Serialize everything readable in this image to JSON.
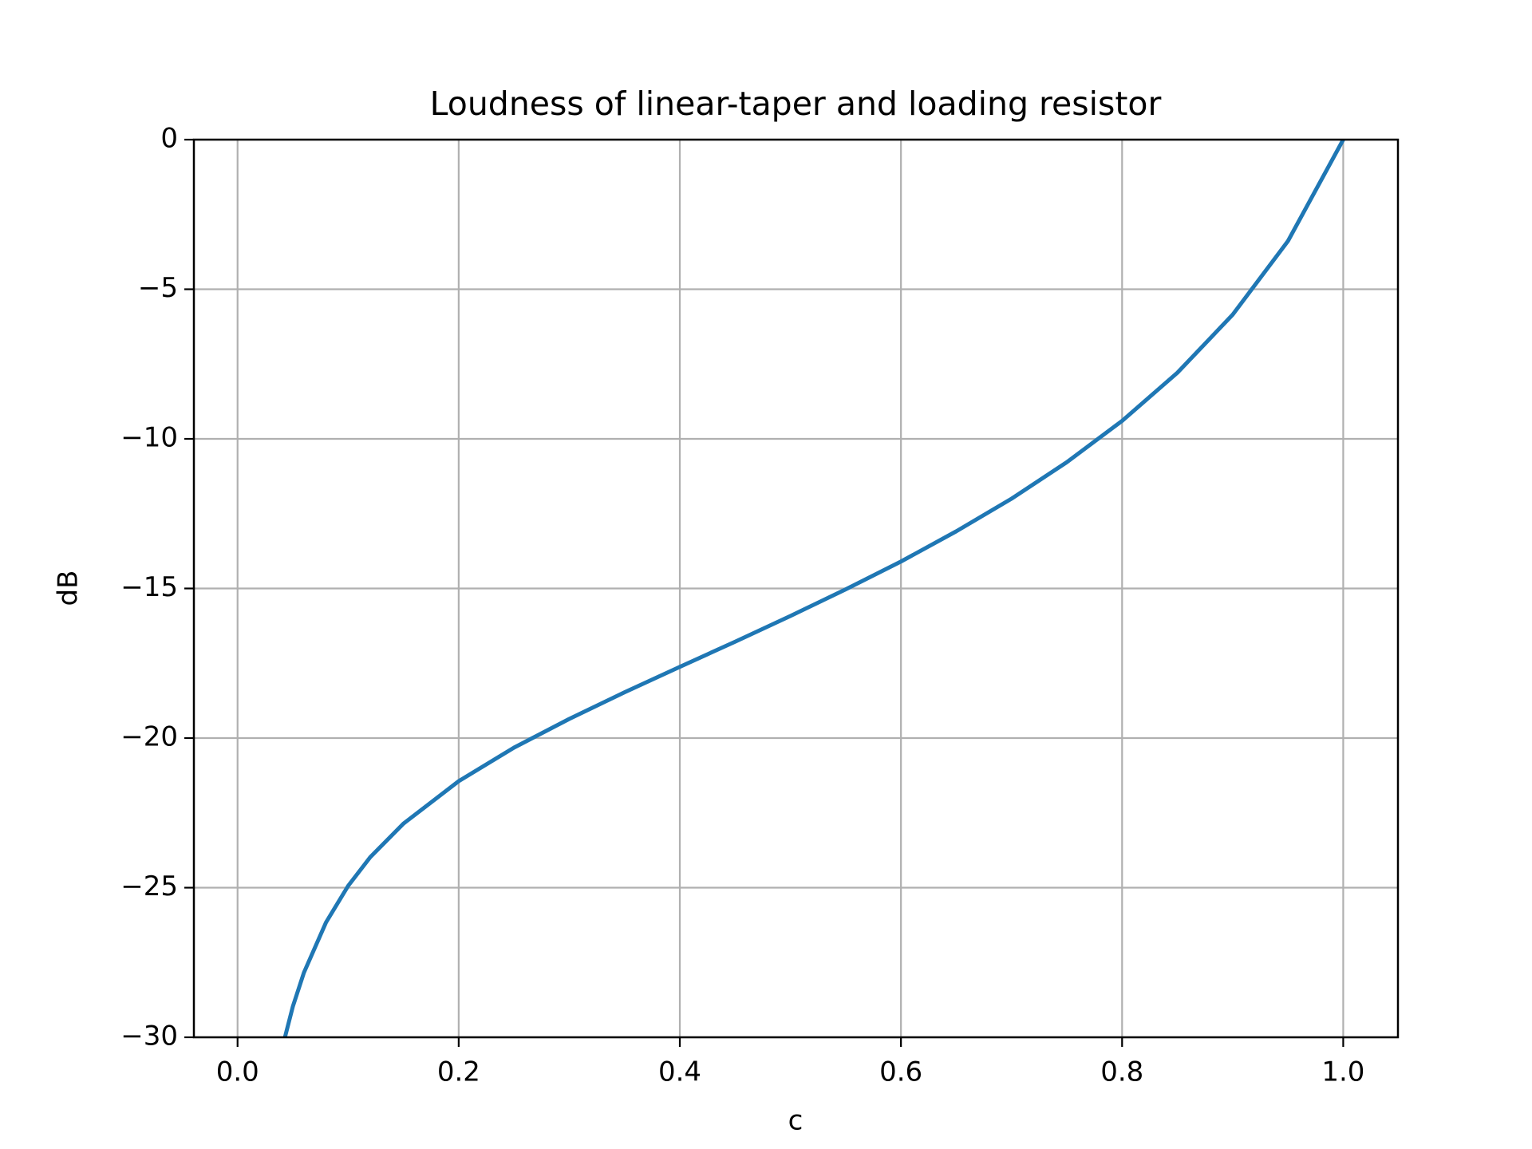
{
  "chart_data": {
    "type": "line",
    "title": "Loudness of linear-taper and loading resistor",
    "xlabel": "c",
    "ylabel": "dB",
    "x": [
      0.04,
      0.05,
      0.06,
      0.08,
      0.1,
      0.12,
      0.15,
      0.2,
      0.25,
      0.3,
      0.35,
      0.4,
      0.45,
      0.5,
      0.55,
      0.6,
      0.65,
      0.7,
      0.75,
      0.8,
      0.85,
      0.9,
      0.95,
      1.0
    ],
    "values": [
      -30.41,
      -28.97,
      -27.84,
      -26.16,
      -24.94,
      -23.98,
      -22.86,
      -21.44,
      -20.32,
      -19.36,
      -18.47,
      -17.62,
      -16.78,
      -15.92,
      -15.03,
      -14.1,
      -13.09,
      -12.0,
      -10.78,
      -9.4,
      -7.79,
      -5.85,
      -3.39,
      0
    ],
    "color": "#1f77b4",
    "xlim": [
      -0.0395,
      1.0495
    ],
    "ylim": [
      -30,
      0
    ],
    "xticks": [
      {
        "value": 0,
        "label": "0.0"
      },
      0.2,
      0.4,
      0.6,
      0.8,
      {
        "value": 1,
        "label": "1.0"
      }
    ],
    "yticks": [
      {
        "value": -30,
        "label": "−30"
      },
      {
        "value": -25,
        "label": "−25"
      },
      {
        "value": -20,
        "label": "−20"
      },
      {
        "value": -15,
        "label": "−15"
      },
      {
        "value": -10,
        "label": "−10"
      },
      {
        "value": -5,
        "label": "−5"
      },
      0
    ],
    "grid": true
  }
}
